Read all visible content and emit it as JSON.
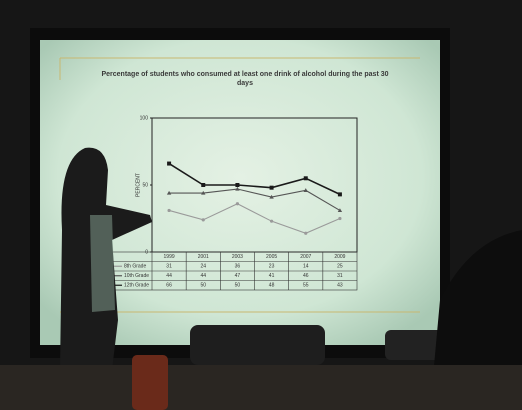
{
  "chart_data": {
    "type": "line",
    "title": "Percentage of students who consumed at least one drink of alcohol during the past 30 days",
    "y_label": "PERCENT",
    "categories": [
      "1999",
      "2001",
      "2003",
      "2005",
      "2007",
      "2009"
    ],
    "series": [
      {
        "name": "8th Grade",
        "color": "#9a9a9a",
        "values": [
          31,
          24,
          36,
          23,
          14,
          25
        ]
      },
      {
        "name": "10th Grade",
        "color": "#555555",
        "values": [
          44,
          44,
          47,
          41,
          46,
          31
        ]
      },
      {
        "name": "12th Grade",
        "color": "#1a1a1a",
        "values": [
          66,
          50,
          50,
          48,
          55,
          43
        ]
      }
    ],
    "ylim": [
      0,
      100
    ],
    "yticks": [
      0,
      50,
      100
    ],
    "grid": false
  }
}
